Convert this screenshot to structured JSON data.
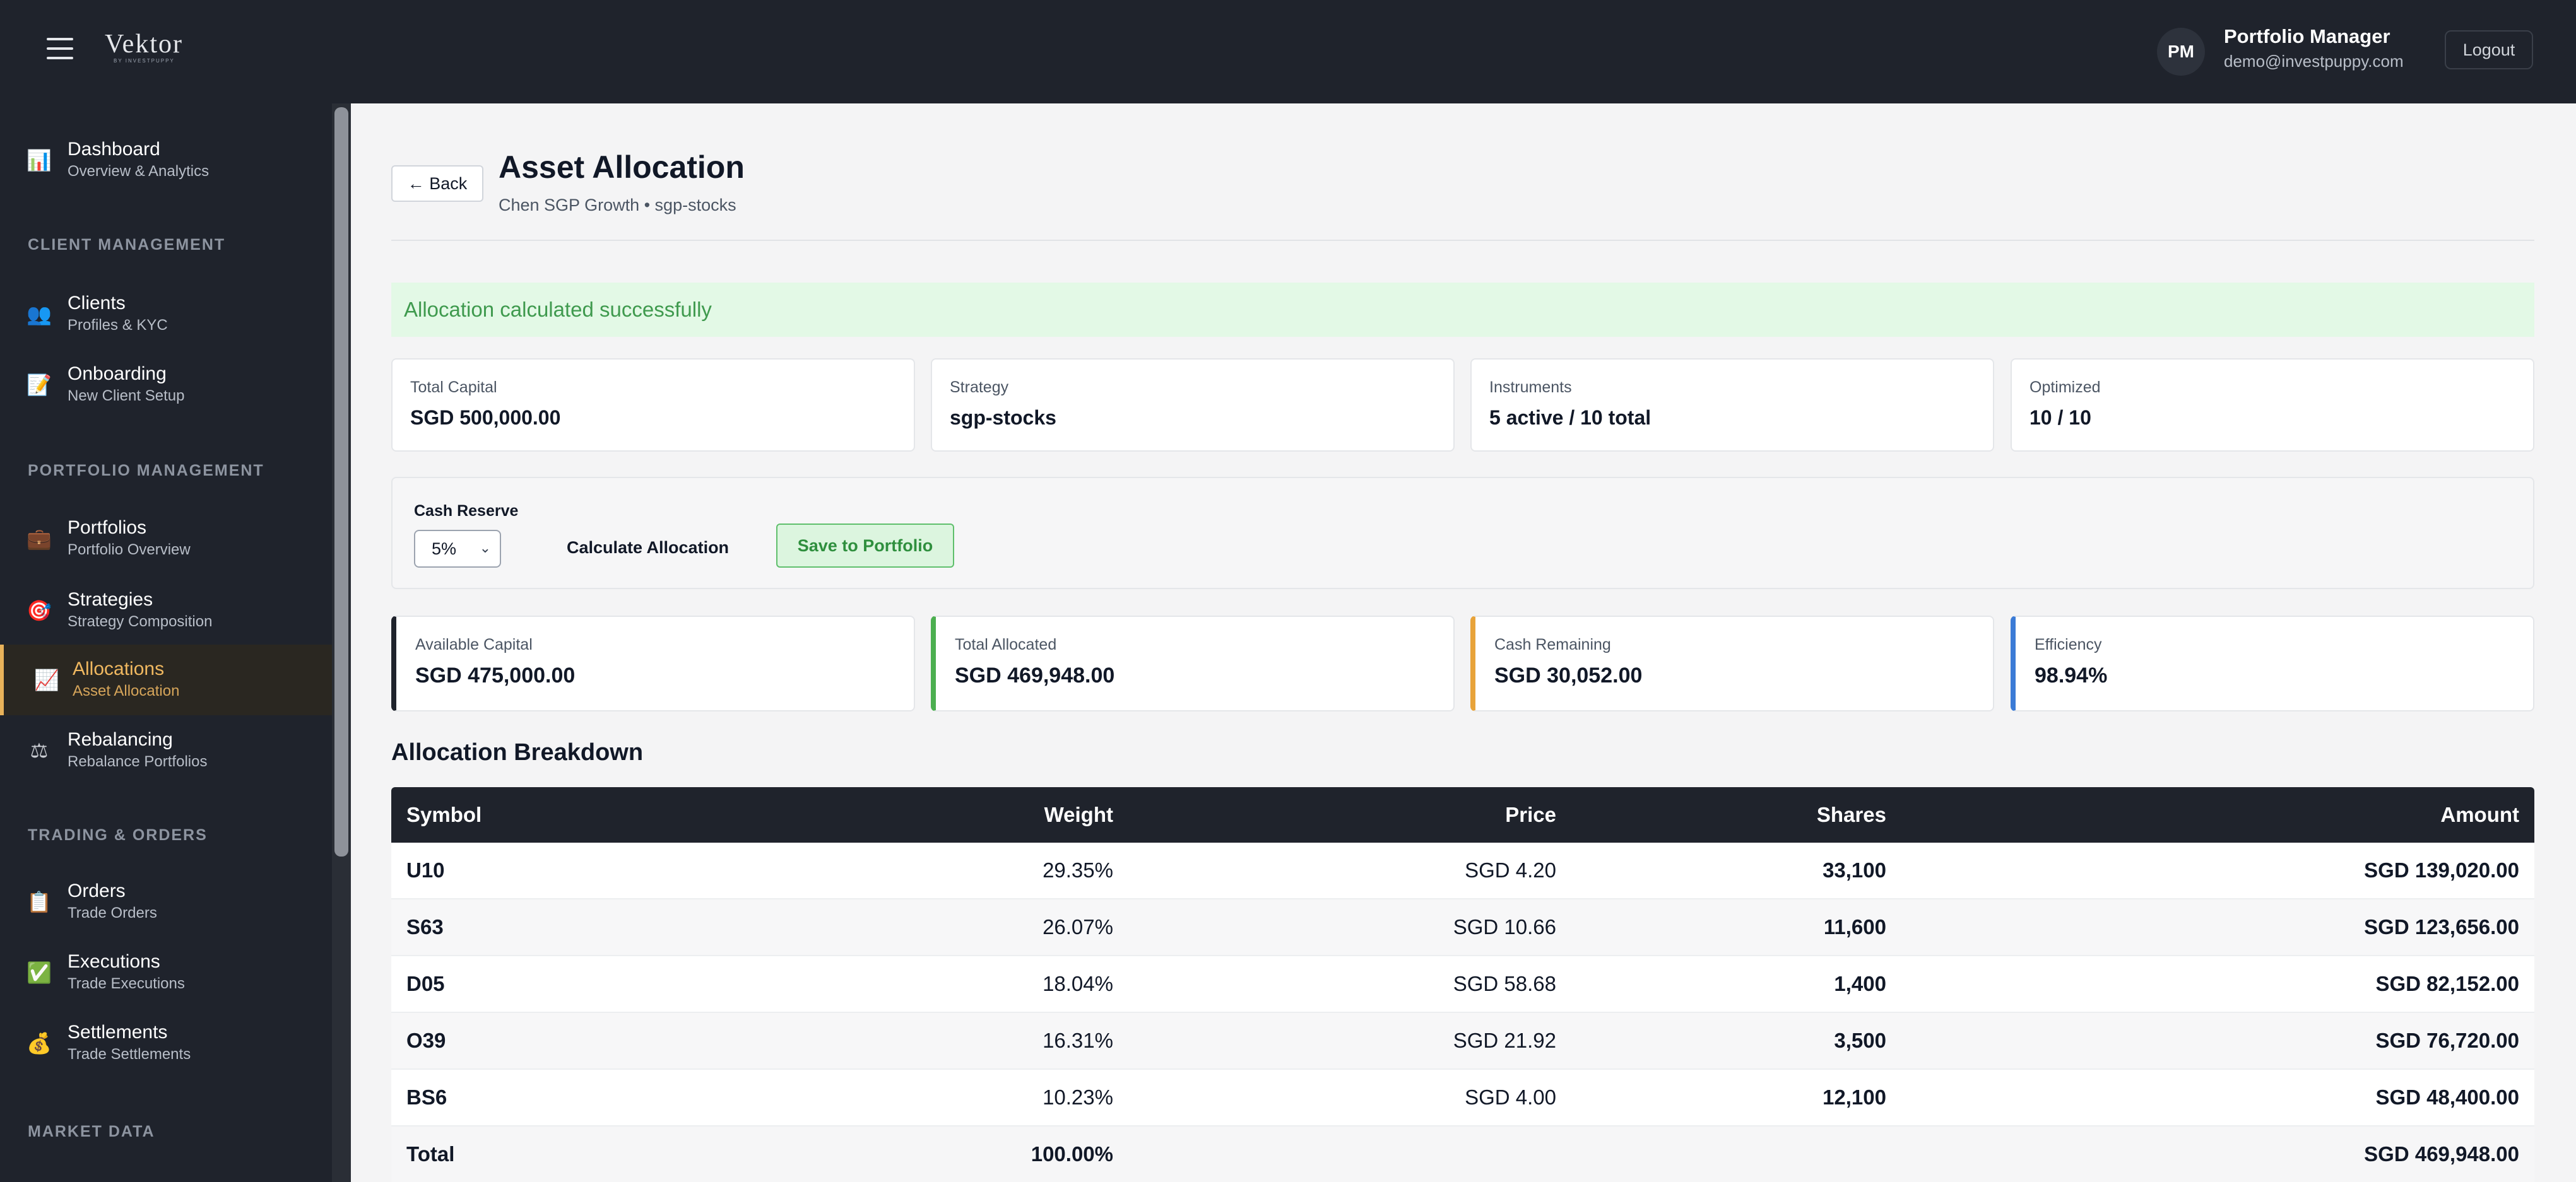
{
  "app": {
    "logo_text": "Vektor",
    "logo_sub": "BY INVESTPUPPY"
  },
  "user": {
    "initials": "PM",
    "name": "Portfolio Manager",
    "email": "demo@investpuppy.com",
    "logout_label": "Logout"
  },
  "sidebar": {
    "dashboard": {
      "label": "Dashboard",
      "sub": "Overview & Analytics",
      "icon": "bar-chart-icon"
    },
    "sections": {
      "client": "CLIENT MANAGEMENT",
      "portfolio": "PORTFOLIO MANAGEMENT",
      "trading": "TRADING & ORDERS",
      "market": "MARKET DATA"
    },
    "clients": {
      "label": "Clients",
      "sub": "Profiles & KYC",
      "icon": "users-icon"
    },
    "onboarding": {
      "label": "Onboarding",
      "sub": "New Client Setup",
      "icon": "memo-icon"
    },
    "portfolios": {
      "label": "Portfolios",
      "sub": "Portfolio Overview",
      "icon": "briefcase-icon"
    },
    "strategies": {
      "label": "Strategies",
      "sub": "Strategy Composition",
      "icon": "target-icon"
    },
    "allocations": {
      "label": "Allocations",
      "sub": "Asset Allocation",
      "icon": "trend-chart-icon"
    },
    "rebalancing": {
      "label": "Rebalancing",
      "sub": "Rebalance Portfolios",
      "icon": "scales-icon"
    },
    "orders": {
      "label": "Orders",
      "sub": "Trade Orders",
      "icon": "clipboard-icon"
    },
    "executions": {
      "label": "Executions",
      "sub": "Trade Executions",
      "icon": "check-icon"
    },
    "settlements": {
      "label": "Settlements",
      "sub": "Trade Settlements",
      "icon": "money-bag-icon"
    }
  },
  "page": {
    "back_label": "← Back",
    "title": "Asset Allocation",
    "subtitle": "Chen SGP Growth • sgp-stocks",
    "success_message": "Allocation calculated successfully"
  },
  "summary": {
    "total_capital": {
      "label": "Total Capital",
      "value": "SGD 500,000.00"
    },
    "strategy": {
      "label": "Strategy",
      "value": "sgp-stocks"
    },
    "instruments": {
      "label": "Instruments",
      "value": "5 active / 10 total"
    },
    "optimized": {
      "label": "Optimized",
      "value": "10 / 10"
    }
  },
  "controls": {
    "cash_reserve_label": "Cash Reserve",
    "cash_reserve_value": "5%",
    "calculate_label": "Calculate Allocation",
    "save_label": "Save to Portfolio"
  },
  "stats": {
    "available": {
      "label": "Available Capital",
      "value": "SGD 475,000.00",
      "accent": "#1f232c"
    },
    "allocated": {
      "label": "Total Allocated",
      "value": "SGD 469,948.00",
      "accent": "#4caf50"
    },
    "remaining": {
      "label": "Cash Remaining",
      "value": "SGD 30,052.00",
      "accent": "#e8a33a"
    },
    "efficiency": {
      "label": "Efficiency",
      "value": "98.94%",
      "accent": "#3b7bd6"
    }
  },
  "breakdown": {
    "title": "Allocation Breakdown",
    "headers": {
      "symbol": "Symbol",
      "weight": "Weight",
      "price": "Price",
      "shares": "Shares",
      "amount": "Amount"
    },
    "rows": [
      {
        "symbol": "U10",
        "weight": "29.35%",
        "price": "SGD 4.20",
        "shares": "33,100",
        "amount": "SGD 139,020.00"
      },
      {
        "symbol": "S63",
        "weight": "26.07%",
        "price": "SGD 10.66",
        "shares": "11,600",
        "amount": "SGD 123,656.00"
      },
      {
        "symbol": "D05",
        "weight": "18.04%",
        "price": "SGD 58.68",
        "shares": "1,400",
        "amount": "SGD 82,152.00"
      },
      {
        "symbol": "O39",
        "weight": "16.31%",
        "price": "SGD 21.92",
        "shares": "3,500",
        "amount": "SGD 76,720.00"
      },
      {
        "symbol": "BS6",
        "weight": "10.23%",
        "price": "SGD 4.00",
        "shares": "12,100",
        "amount": "SGD 48,400.00"
      }
    ],
    "total": {
      "label": "Total",
      "weight": "100.00%",
      "amount": "SGD 469,948.00"
    }
  },
  "colors": {
    "sidebar_bg": "#1f232c",
    "active_accent": "#e8b25a",
    "success_bg": "#e3f9e6",
    "success_text": "#3f9a4e"
  }
}
